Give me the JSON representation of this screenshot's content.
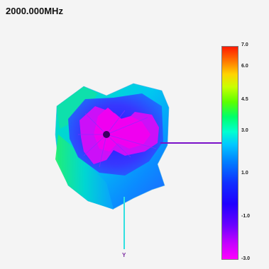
{
  "header": {
    "frequency": "2000.000MHz"
  },
  "colorbar": {
    "ticks": [
      "7.0",
      "6.0",
      "4.5",
      "3.0",
      "1.0",
      "-1.0",
      "-3.0"
    ],
    "colors": [
      "#ff1a00",
      "#ffd400",
      "#5cff00",
      "#00ffd0",
      "#0080ff",
      "#2000ff",
      "#ff00ff"
    ]
  },
  "axes": {
    "y_label": "Y"
  }
}
